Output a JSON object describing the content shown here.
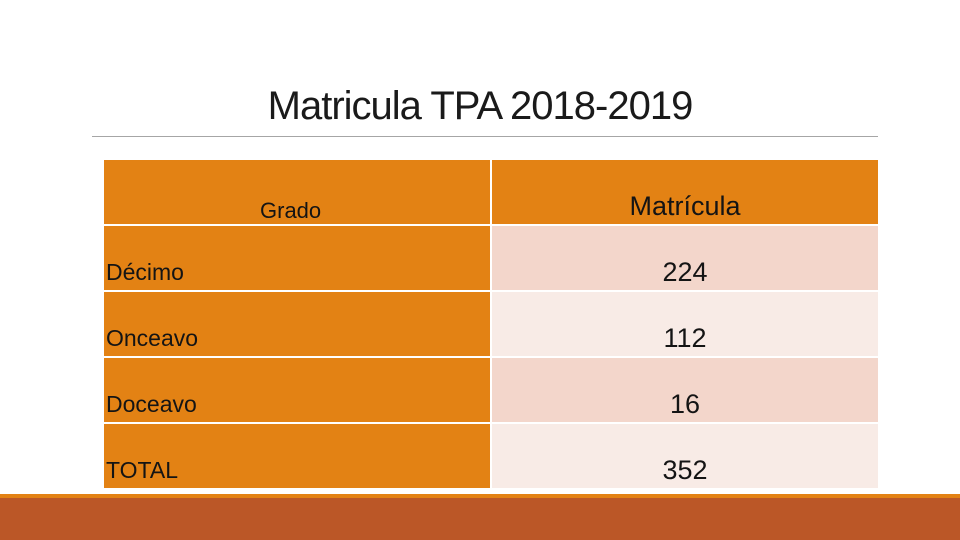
{
  "slide": {
    "title": "Matricula TPA 2018-2019"
  },
  "table": {
    "headers": {
      "grado": "Grado",
      "matricula": "Matrícula"
    },
    "rows": [
      {
        "grado": "Décimo",
        "matricula": "224"
      },
      {
        "grado": "Onceavo",
        "matricula": "112"
      },
      {
        "grado": "Doceavo",
        "matricula": "16"
      },
      {
        "grado": "TOTAL",
        "matricula": "352"
      }
    ]
  },
  "colors": {
    "accent": "#e38214",
    "band_dark": "#f3d6cb",
    "band_light": "#f8ebe6",
    "footer": "#bb5727"
  }
}
